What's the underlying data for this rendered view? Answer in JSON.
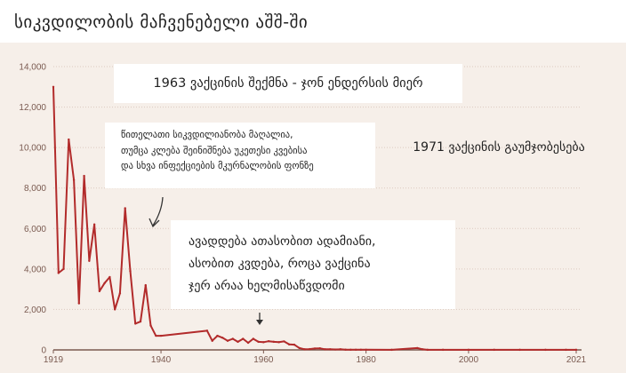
{
  "title": "სიკვდილობის მაჩვენებელი აშშ-ში",
  "colors": {
    "background": "#f6efe9",
    "line": "#b22b2b",
    "axis": "#7a5a50",
    "gridline": "#dcc9c0"
  },
  "annotations": {
    "vaccine_1963": "1963 ვაქცინის შექმნა - ჯონ ენდერსის მიერ",
    "vaccine_1971": "1971 ვაქცინის გაუმჯობესება",
    "red_lines": [
      "წითელათი სიკვდილიანობა მაღალია,",
      "თუმცა კლება შეინიშნება უკეთესი კვებისა",
      "და სხვა ინფექციების მკურნალობის ფონზე"
    ],
    "cases": [
      "ავადდება ათასობით ადამიანი,",
      "ასობით კვდება, როცა ვაქცინა",
      "ჯერ არაა ხელმისაწვდომი"
    ]
  },
  "chart_data": {
    "type": "line",
    "title": "სიკვდილობის მაჩვენებელი აშშ-ში",
    "xlabel": "",
    "ylabel": "",
    "xlim": [
      1919,
      2021
    ],
    "ylim": [
      0,
      14000
    ],
    "x_ticks": [
      "1919",
      "1940",
      "1960",
      "1980",
      "2000",
      "2021"
    ],
    "y_ticks": [
      "0",
      "2,000",
      "4,000",
      "6,000",
      "8,000",
      "10,000",
      "12,000",
      "14,000"
    ],
    "grid": "horizontal",
    "series": [
      {
        "x": [
          1919,
          1920,
          1921,
          1922,
          1923,
          1924,
          1925,
          1926,
          1927,
          1928,
          1929,
          1930,
          1931,
          1932,
          1933,
          1934,
          1935,
          1936,
          1937,
          1938,
          1939,
          1940,
          1949,
          1950,
          1951,
          1952,
          1953,
          1954,
          1955,
          1956,
          1957,
          1958,
          1959,
          1960,
          1961,
          1962,
          1963,
          1964,
          1965,
          1966,
          1967,
          1968,
          1969,
          1970,
          1971,
          1972,
          1973,
          1974,
          1975,
          1976,
          1977,
          1978,
          1979,
          1980,
          1985,
          1990,
          1991,
          1992,
          1995,
          2000,
          2005,
          2010,
          2015,
          2019,
          2021
        ],
        "values": [
          13000,
          3800,
          4000,
          10400,
          8400,
          2300,
          8600,
          4400,
          6200,
          2900,
          3300,
          3600,
          2000,
          2800,
          7000,
          3900,
          1300,
          1400,
          3200,
          1200,
          700,
          700,
          950,
          450,
          700,
          600,
          450,
          550,
          400,
          550,
          350,
          550,
          400,
          380,
          430,
          400,
          380,
          420,
          270,
          260,
          90,
          30,
          40,
          70,
          80,
          30,
          30,
          20,
          30,
          15,
          10,
          10,
          10,
          10,
          5,
          90,
          30,
          5,
          5,
          5,
          5,
          5,
          5,
          5,
          5
        ]
      }
    ]
  }
}
